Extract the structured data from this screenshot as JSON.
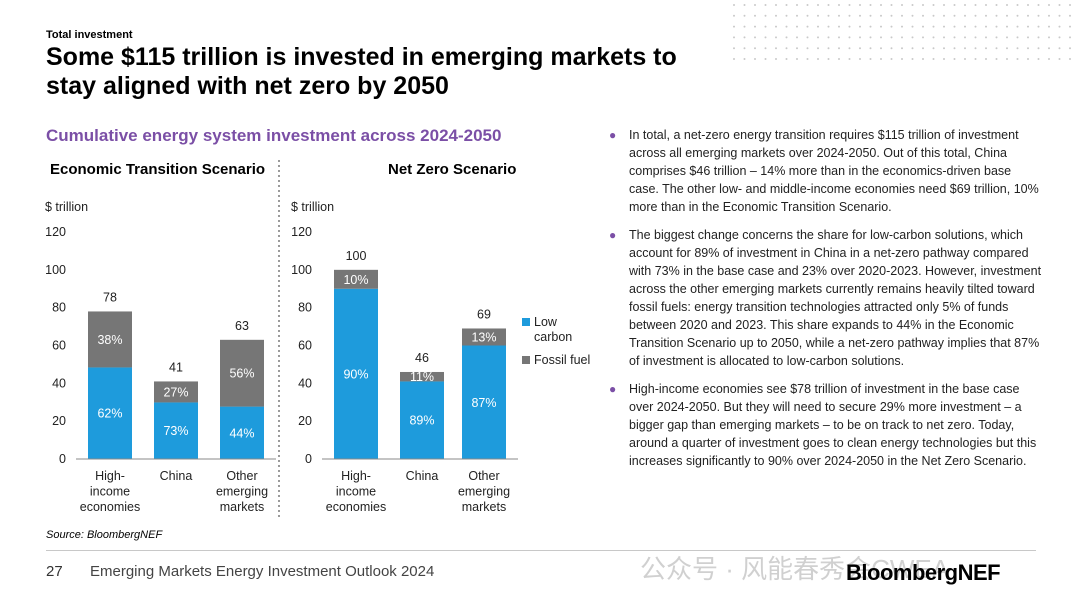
{
  "header": {
    "eyebrow": "Total investment",
    "headline": "Some $115 trillion is invested in emerging markets to stay aligned with net zero by 2050"
  },
  "chart_title": "Cumulative energy system investment across 2024-2050",
  "colors": {
    "low_carbon": "#1e9bdc",
    "fossil_fuel": "#767676",
    "accent": "#7b4fa6"
  },
  "legend": [
    {
      "key": "low_carbon",
      "label_lines": [
        "Low",
        "carbon"
      ]
    },
    {
      "key": "fossil_fuel",
      "label_lines": [
        "Fossil fuel"
      ]
    }
  ],
  "chart_data": [
    {
      "type": "bar",
      "title": "Economic Transition Scenario",
      "ylabel": "$ trillion",
      "ylim": [
        0,
        120
      ],
      "yticks": [
        0,
        20,
        40,
        60,
        80,
        100,
        120
      ],
      "categories": [
        [
          "High-",
          "income",
          "economies"
        ],
        [
          "China"
        ],
        [
          "Other",
          "emerging",
          "markets"
        ]
      ],
      "totals": [
        "78",
        "41",
        "63"
      ],
      "series": [
        {
          "name": "Low carbon",
          "values": [
            48.4,
            29.9,
            27.7
          ],
          "labels": [
            "62%",
            "73%",
            "44%"
          ]
        },
        {
          "name": "Fossil fuel",
          "values": [
            29.6,
            11.1,
            35.3
          ],
          "labels": [
            "38%",
            "27%",
            "56%"
          ]
        }
      ],
      "stacked": true
    },
    {
      "type": "bar",
      "title": "Net Zero Scenario",
      "ylabel": "$ trillion",
      "ylim": [
        0,
        120
      ],
      "yticks": [
        0,
        20,
        40,
        60,
        80,
        100,
        120
      ],
      "categories": [
        [
          "High-",
          "income",
          "economies"
        ],
        [
          "China"
        ],
        [
          "Other",
          "emerging",
          "markets"
        ]
      ],
      "totals": [
        "100",
        "46",
        "69"
      ],
      "series": [
        {
          "name": "Low carbon",
          "values": [
            90,
            41,
            60
          ],
          "labels": [
            "90%",
            "89%",
            "87%"
          ]
        },
        {
          "name": "Fossil fuel",
          "values": [
            10,
            5,
            9
          ],
          "labels": [
            "10%",
            "11%",
            "13%"
          ]
        }
      ],
      "stacked": true
    }
  ],
  "source": "Source: BloombergNEF",
  "bullets": [
    "In total, a net-zero energy transition requires $115 trillion of investment across all emerging markets over 2024-2050. Out of this total, China comprises $46 trillion – 14% more than in the economics-driven base case. The other low- and middle-income economies need $69 trillion, 10% more than in the Economic Transition Scenario.",
    "The biggest change concerns the share for low-carbon solutions, which account for 89% of investment in China in a net-zero pathway compared with 73% in the base case and 23% over 2020-2023. However, investment across the other emerging markets currently remains heavily tilted toward fossil fuels: energy transition technologies attracted only 5% of funds between 2020 and 2023. This share expands to 44% in the Economic Transition Scenario up to 2050, while a net-zero pathway implies that 87% of investment is allocated to low-carbon solutions.",
    "High-income economies see $78 trillion of investment in the base case over 2024-2050. But they will need to secure 29% more investment – a bigger gap than emerging markets – to be on track to net zero. Today, around a quarter of investment goes to clean energy technologies but this increases significantly to 90% over 2024-2050 in the Net Zero Scenario."
  ],
  "footer": {
    "page_number": "27",
    "report_name": "Emerging Markets Energy Investment Outlook 2024",
    "brand": "BloombergNEF",
    "watermark": "公众号 · 风能春秀会CWEA"
  }
}
